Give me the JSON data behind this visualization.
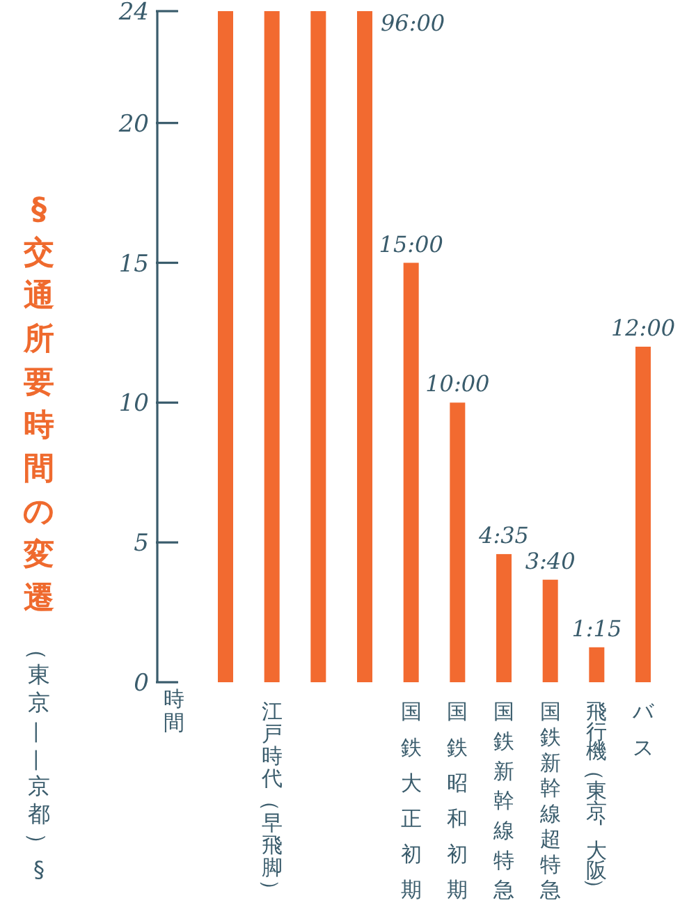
{
  "chart_data": {
    "type": "bar",
    "title": "§交通所要時間の変遷",
    "subtitle": "（東京——京都）§",
    "ylabel": "時間",
    "categories": [
      null,
      "江戸時代（早飛脚）",
      null,
      null,
      "国鉄大正初期",
      "国鉄昭和初期",
      "国鉄新幹線特急",
      "国鉄新幹線超特急",
      "飛行機（東京-大阪）",
      "バス"
    ],
    "values": [
      24,
      24,
      24,
      24,
      15,
      10,
      4.583,
      3.667,
      1.25,
      12
    ],
    "value_labels": [
      null,
      null,
      null,
      null,
      "15:00",
      "10:00",
      "4:35",
      "3:40",
      "1:15",
      "12:00"
    ],
    "annotations": [
      "96:00"
    ],
    "color": "#f26a30",
    "ylim": [
      0,
      24
    ],
    "yticks": [
      0,
      5,
      10,
      15,
      20,
      24
    ]
  }
}
